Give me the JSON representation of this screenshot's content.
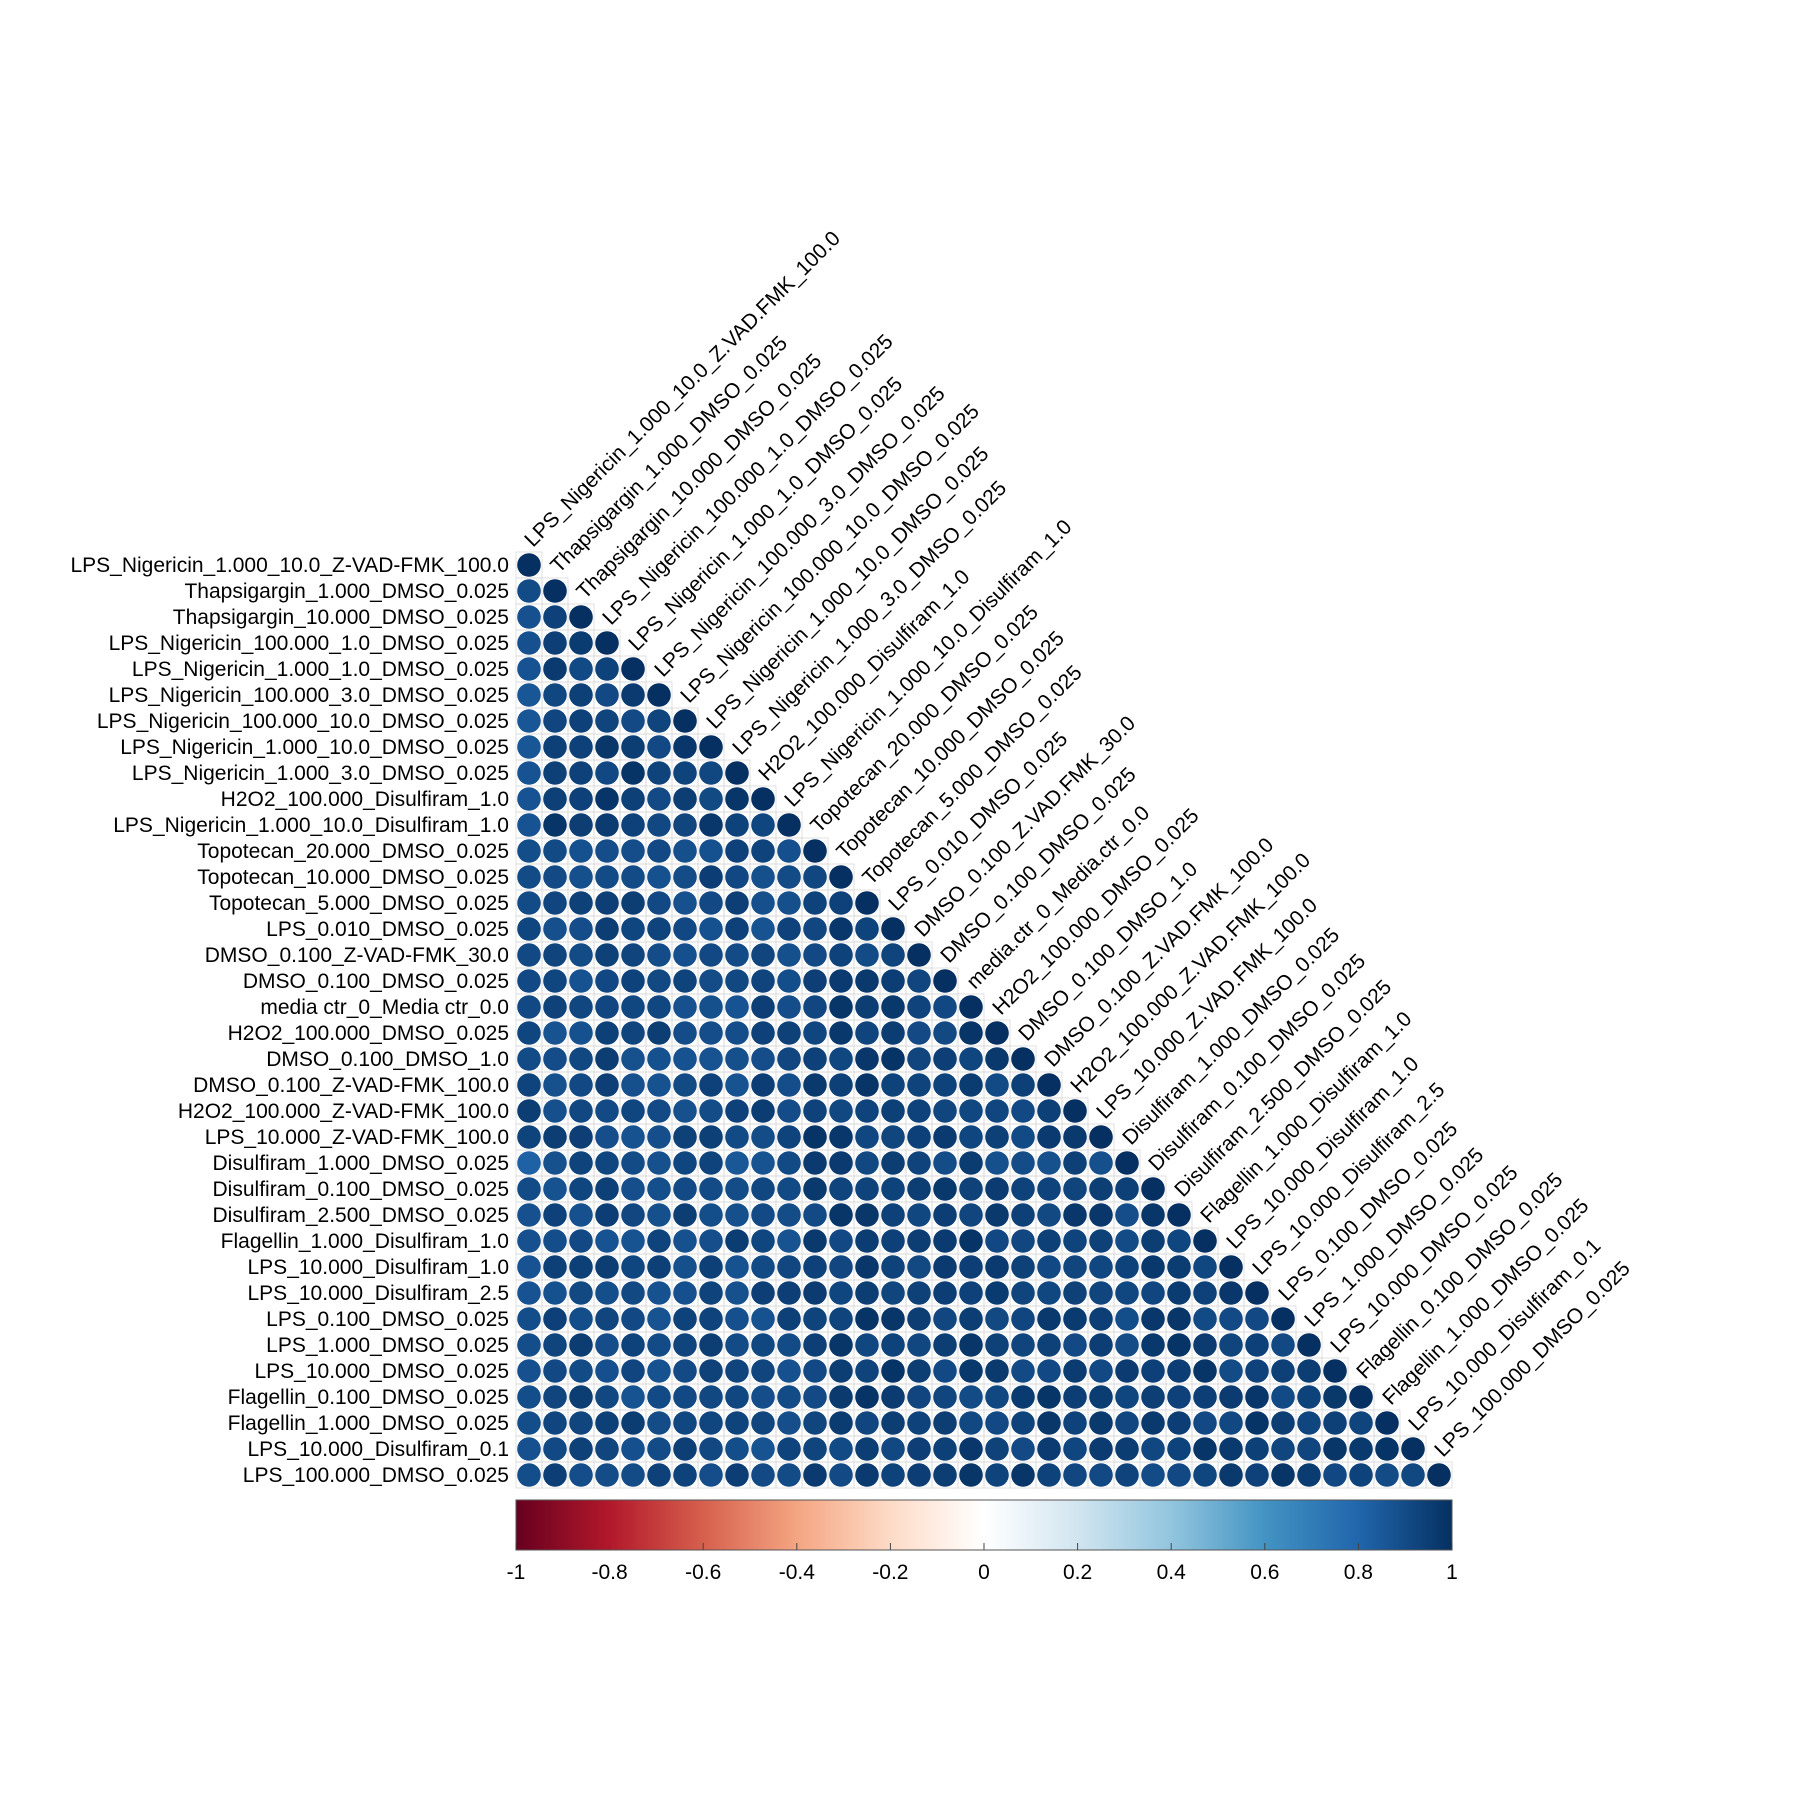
{
  "chart_data": {
    "type": "heatmap",
    "style": "lower-triangle circle correlation plot",
    "labels": [
      "LPS_Nigericin_1.000_10.0_Z-VAD-FMK_100.0",
      "Thapsigargin_1.000_DMSO_0.025",
      "Thapsigargin_10.000_DMSO_0.025",
      "LPS_Nigericin_100.000_1.0_DMSO_0.025",
      "LPS_Nigericin_1.000_1.0_DMSO_0.025",
      "LPS_Nigericin_100.000_3.0_DMSO_0.025",
      "LPS_Nigericin_100.000_10.0_DMSO_0.025",
      "LPS_Nigericin_1.000_10.0_DMSO_0.025",
      "LPS_Nigericin_1.000_3.0_DMSO_0.025",
      "H2O2_100.000_Disulfiram_1.0",
      "LPS_Nigericin_1.000_10.0_Disulfiram_1.0",
      "Topotecan_20.000_DMSO_0.025",
      "Topotecan_10.000_DMSO_0.025",
      "Topotecan_5.000_DMSO_0.025",
      "LPS_0.010_DMSO_0.025",
      "DMSO_0.100_Z-VAD-FMK_30.0",
      "DMSO_0.100_DMSO_0.025",
      "media ctr_0_Media ctr_0.0",
      "H2O2_100.000_DMSO_0.025",
      "DMSO_0.100_DMSO_1.0",
      "DMSO_0.100_Z-VAD-FMK_100.0",
      "H2O2_100.000_Z-VAD-FMK_100.0",
      "LPS_10.000_Z-VAD-FMK_100.0",
      "Disulfiram_1.000_DMSO_0.025",
      "Disulfiram_0.100_DMSO_0.025",
      "Disulfiram_2.500_DMSO_0.025",
      "Flagellin_1.000_Disulfiram_1.0",
      "LPS_10.000_Disulfiram_1.0",
      "LPS_10.000_Disulfiram_2.5",
      "LPS_0.100_DMSO_0.025",
      "LPS_1.000_DMSO_0.025",
      "LPS_10.000_DMSO_0.025",
      "Flagellin_0.100_DMSO_0.025",
      "Flagellin_1.000_DMSO_0.025",
      "LPS_10.000_Disulfiram_0.1",
      "LPS_100.000_DMSO_0.025"
    ],
    "column_labels": [
      "LPS_Nigericin_1.000_10.0_Z.VAD.FMK_100.0",
      "Thapsigargin_1.000_DMSO_0.025",
      "Thapsigargin_10.000_DMSO_0.025",
      "LPS_Nigericin_100.000_1.0_DMSO_0.025",
      "LPS_Nigericin_1.000_1.0_DMSO_0.025",
      "LPS_Nigericin_100.000_3.0_DMSO_0.025",
      "LPS_Nigericin_100.000_10.0_DMSO_0.025",
      "LPS_Nigericin_1.000_10.0_DMSO_0.025",
      "LPS_Nigericin_1.000_3.0_DMSO_0.025",
      "H2O2_100.000_Disulfiram_1.0",
      "LPS_Nigericin_1.000_10.0_Disulfiram_1.0",
      "Topotecan_20.000_DMSO_0.025",
      "Topotecan_10.000_DMSO_0.025",
      "Topotecan_5.000_DMSO_0.025",
      "LPS_0.010_DMSO_0.025",
      "DMSO_0.100_Z.VAD.FMK_30.0",
      "DMSO_0.100_DMSO_0.025",
      "media.ctr_0_Media.ctr_0.0",
      "H2O2_100.000_DMSO_0.025",
      "DMSO_0.100_DMSO_1.0",
      "DMSO_0.100_Z.VAD.FMK_100.0",
      "H2O2_100.000_Z.VAD.FMK_100.0",
      "LPS_10.000_Z.VAD.FMK_100.0",
      "Disulfiram_1.000_DMSO_0.025",
      "Disulfiram_0.100_DMSO_0.025",
      "Disulfiram_2.500_DMSO_0.025",
      "Flagellin_1.000_Disulfiram_1.0",
      "LPS_10.000_Disulfiram_1.0",
      "LPS_10.000_Disulfiram_2.5",
      "LPS_0.100_DMSO_0.025",
      "LPS_1.000_DMSO_0.025",
      "LPS_10.000_DMSO_0.025",
      "Flagellin_0.100_DMSO_0.025",
      "Flagellin_1.000_DMSO_0.025",
      "LPS_10.000_Disulfiram_0.1",
      "LPS_100.000_DMSO_0.025"
    ],
    "value_range": [
      -1,
      1
    ],
    "value_estimate": "all lower-triangle correlations appear strongly positive (≈0.82–1.0); diagonal = 1",
    "first_column_values": [
      1.0,
      0.9,
      0.88,
      0.88,
      0.87,
      0.86,
      0.86,
      0.86,
      0.87,
      0.87,
      0.87,
      0.89,
      0.9,
      0.9,
      0.92,
      0.91,
      0.91,
      0.91,
      0.92,
      0.9,
      0.93,
      0.95,
      0.93,
      0.82,
      0.9,
      0.88,
      0.88,
      0.87,
      0.87,
      0.89,
      0.89,
      0.88,
      0.89,
      0.89,
      0.88,
      0.89
    ],
    "first_row_values_by_row_index_for_block_min": 0.84,
    "colorbar": {
      "ticks": [
        "-1",
        "-0.8",
        "-0.6",
        "-0.4",
        "-0.2",
        "0",
        "0.2",
        "0.4",
        "0.6",
        "0.8",
        "1"
      ],
      "colors": [
        "#67001F",
        "#B2182B",
        "#D6604D",
        "#F4A582",
        "#FDDBC7",
        "#FFFFFF",
        "#D1E5F0",
        "#92C5DE",
        "#4393C3",
        "#2166AC",
        "#053061"
      ]
    }
  }
}
